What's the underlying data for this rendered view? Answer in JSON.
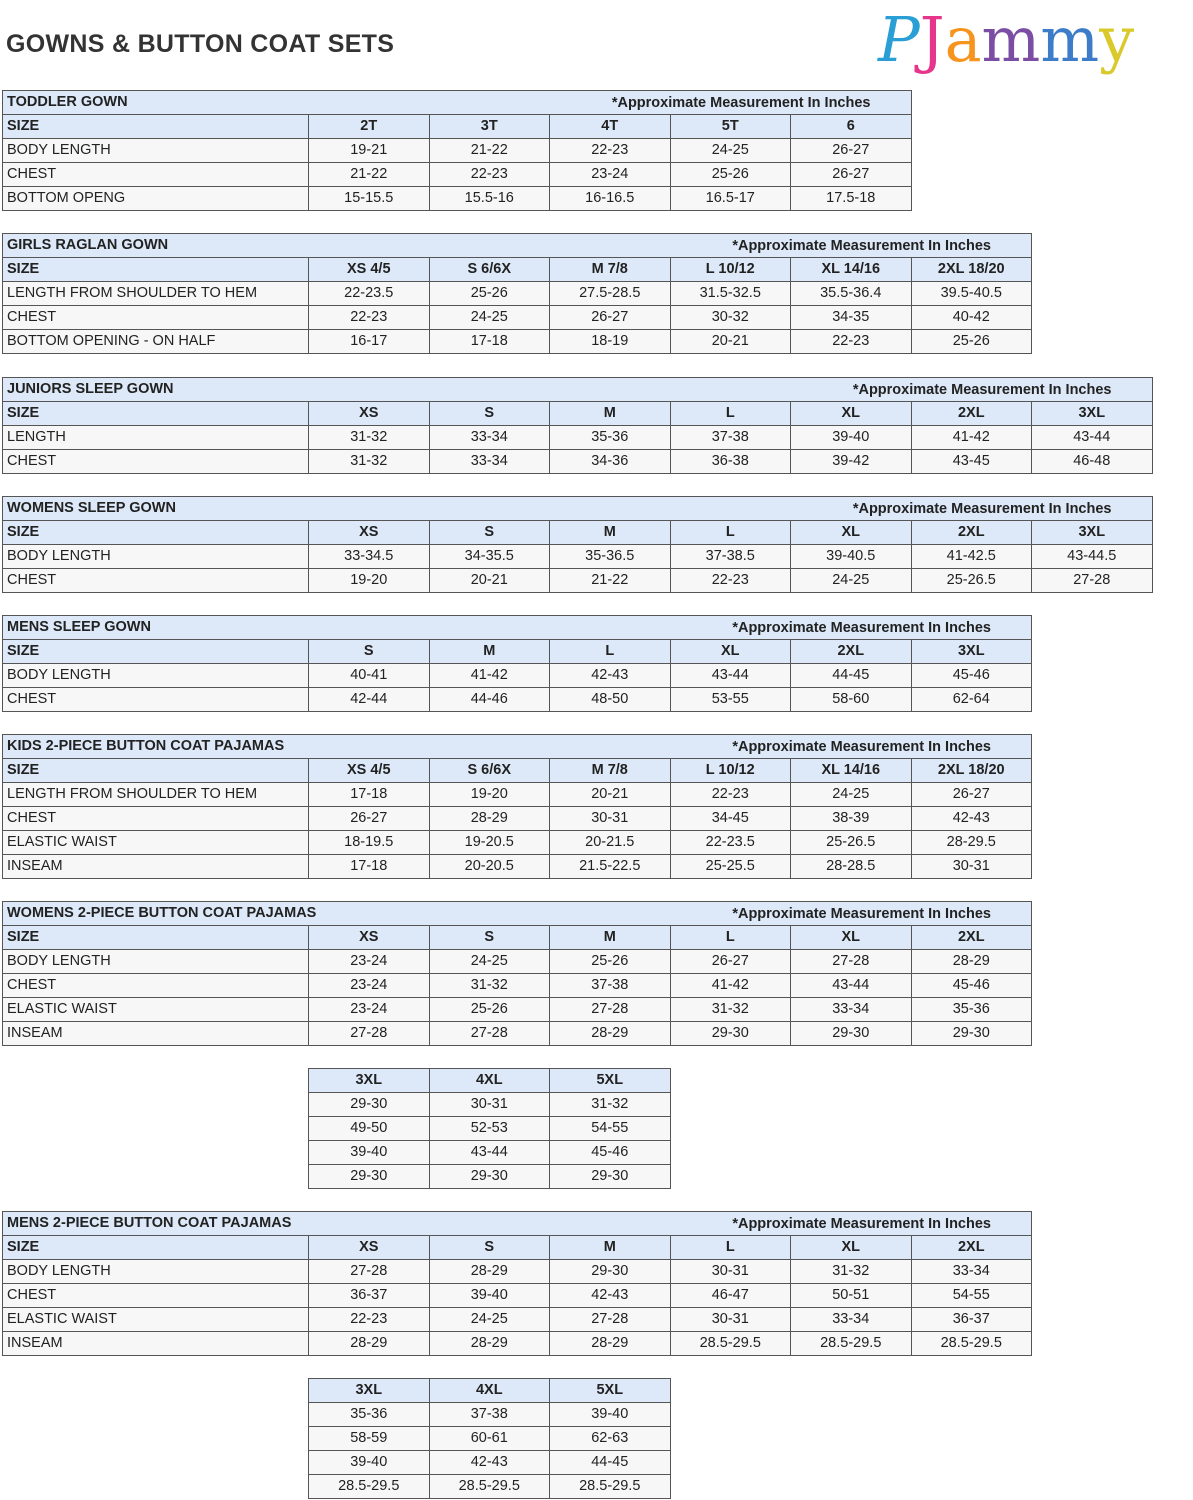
{
  "header": {
    "title": "GOWNS & BUTTON COAT SETS",
    "logo": [
      "P",
      "J",
      "a",
      "m",
      "m",
      "y"
    ]
  },
  "tables": [
    {
      "title": "TODDLER GOWN",
      "note": "*Approximate Measurement In Inches",
      "columns": [
        "SIZE",
        "2T",
        "3T",
        "4T",
        "5T",
        "6"
      ],
      "rows": [
        [
          "BODY LENGTH",
          "19-21",
          "21-22",
          "22-23",
          "24-25",
          "26-27"
        ],
        [
          "CHEST",
          "21-22",
          "22-23",
          "23-24",
          "25-26",
          "26-27"
        ],
        [
          "BOTTOM OPENG",
          "15-15.5",
          "15.5-16",
          "16-16.5",
          "16.5-17",
          "17.5-18"
        ]
      ]
    },
    {
      "title": "GIRLS RAGLAN GOWN",
      "note": "*Approximate Measurement In Inches",
      "columns": [
        "SIZE",
        "XS 4/5",
        "S 6/6X",
        "M 7/8",
        "L 10/12",
        "XL 14/16",
        "2XL 18/20"
      ],
      "rows": [
        [
          "LENGTH FROM SHOULDER TO HEM",
          "22-23.5",
          "25-26",
          "27.5-28.5",
          "31.5-32.5",
          "35.5-36.4",
          "39.5-40.5"
        ],
        [
          "CHEST",
          "22-23",
          "24-25",
          "26-27",
          "30-32",
          "34-35",
          "40-42"
        ],
        [
          "BOTTOM OPENING - ON HALF",
          "16-17",
          "17-18",
          "18-19",
          "20-21",
          "22-23",
          "25-26"
        ]
      ]
    },
    {
      "title": "JUNIORS SLEEP GOWN",
      "note": "*Approximate Measurement In Inches",
      "columns": [
        "SIZE",
        "XS",
        "S",
        "M",
        "L",
        "XL",
        "2XL",
        "3XL"
      ],
      "rows": [
        [
          "LENGTH",
          "31-32",
          "33-34",
          "35-36",
          "37-38",
          "39-40",
          "41-42",
          "43-44"
        ],
        [
          "CHEST",
          "31-32",
          "33-34",
          "34-36",
          "36-38",
          "39-42",
          "43-45",
          "46-48"
        ]
      ]
    },
    {
      "title": "WOMENS SLEEP GOWN",
      "note": "*Approximate Measurement In Inches",
      "columns": [
        "SIZE",
        "XS",
        "S",
        "M",
        "L",
        "XL",
        "2XL",
        "3XL"
      ],
      "rows": [
        [
          "BODY LENGTH",
          "33-34.5",
          "34-35.5",
          "35-36.5",
          "37-38.5",
          "39-40.5",
          "41-42.5",
          "43-44.5"
        ],
        [
          "CHEST",
          "19-20",
          "20-21",
          "21-22",
          "22-23",
          "24-25",
          "25-26.5",
          "27-28"
        ]
      ]
    },
    {
      "title": "MENS SLEEP GOWN",
      "note": "*Approximate Measurement In Inches",
      "columns": [
        "SIZE",
        "S",
        "M",
        "L",
        "XL",
        "2XL",
        "3XL"
      ],
      "rows": [
        [
          "BODY LENGTH",
          "40-41",
          "41-42",
          "42-43",
          "43-44",
          "44-45",
          "45-46"
        ],
        [
          "CHEST",
          "42-44",
          "44-46",
          "48-50",
          "53-55",
          "58-60",
          "62-64"
        ]
      ]
    },
    {
      "title": "KIDS 2-PIECE BUTTON COAT PAJAMAS",
      "note": "*Approximate Measurement In Inches",
      "columns": [
        "SIZE",
        "XS 4/5",
        "S 6/6X",
        "M 7/8",
        "L 10/12",
        "XL 14/16",
        "2XL 18/20"
      ],
      "rows": [
        [
          "LENGTH FROM SHOULDER TO HEM",
          "17-18",
          "19-20",
          "20-21",
          "22-23",
          "24-25",
          "26-27"
        ],
        [
          "CHEST",
          "26-27",
          "28-29",
          "30-31",
          "34-45",
          "38-39",
          "42-43"
        ],
        [
          "ELASTIC WAIST",
          "18-19.5",
          "19-20.5",
          "20-21.5",
          "22-23.5",
          "25-26.5",
          "28-29.5"
        ],
        [
          "INSEAM",
          "17-18",
          "20-20.5",
          "21.5-22.5",
          "25-25.5",
          "28-28.5",
          "30-31"
        ]
      ]
    },
    {
      "title": "WOMENS 2-PIECE BUTTON COAT PAJAMAS",
      "note": "*Approximate Measurement In Inches",
      "columns": [
        "SIZE",
        "XS",
        "S",
        "M",
        "L",
        "XL",
        "2XL"
      ],
      "rows": [
        [
          "BODY LENGTH",
          "23-24",
          "24-25",
          "25-26",
          "26-27",
          "27-28",
          "28-29"
        ],
        [
          "CHEST",
          "23-24",
          "31-32",
          "37-38",
          "41-42",
          "43-44",
          "45-46"
        ],
        [
          "ELASTIC WAIST",
          "23-24",
          "25-26",
          "27-28",
          "31-32",
          "33-34",
          "35-36"
        ],
        [
          "INSEAM",
          "27-28",
          "27-28",
          "28-29",
          "29-30",
          "29-30",
          "29-30"
        ]
      ],
      "continuation": {
        "columns": [
          "3XL",
          "4XL",
          "5XL"
        ],
        "rows": [
          [
            "29-30",
            "30-31",
            "31-32"
          ],
          [
            "49-50",
            "52-53",
            "54-55"
          ],
          [
            "39-40",
            "43-44",
            "45-46"
          ],
          [
            "29-30",
            "29-30",
            "29-30"
          ]
        ]
      }
    },
    {
      "title": "MENS 2-PIECE BUTTON COAT PAJAMAS",
      "note": "*Approximate Measurement In Inches",
      "columns": [
        "SIZE",
        "XS",
        "S",
        "M",
        "L",
        "XL",
        "2XL"
      ],
      "rows": [
        [
          "BODY LENGTH",
          "27-28",
          "28-29",
          "29-30",
          "30-31",
          "31-32",
          "33-34"
        ],
        [
          "CHEST",
          "36-37",
          "39-40",
          "42-43",
          "46-47",
          "50-51",
          "54-55"
        ],
        [
          "ELASTIC WAIST",
          "22-23",
          "24-25",
          "27-28",
          "30-31",
          "33-34",
          "36-37"
        ],
        [
          "INSEAM",
          "28-29",
          "28-29",
          "28-29",
          "28.5-29.5",
          "28.5-29.5",
          "28.5-29.5"
        ]
      ],
      "continuation": {
        "columns": [
          "3XL",
          "4XL",
          "5XL"
        ],
        "rows": [
          [
            "35-36",
            "37-38",
            "39-40"
          ],
          [
            "58-59",
            "60-61",
            "62-63"
          ],
          [
            "39-40",
            "42-43",
            "44-45"
          ],
          [
            "28.5-29.5",
            "28.5-29.5",
            "28.5-29.5"
          ]
        ]
      }
    }
  ]
}
